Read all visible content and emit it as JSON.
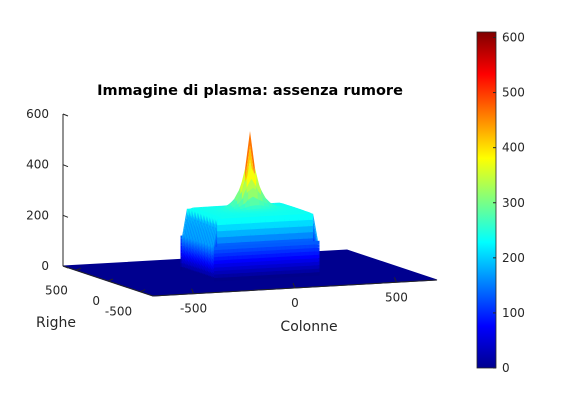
{
  "chart_data": {
    "type": "surface",
    "title": "Immagine di plasma: assenza rumore",
    "xlabel": "Colonne",
    "ylabel": "Righe",
    "zlabel": "",
    "xlim": [
      -700,
      700
    ],
    "ylim": [
      -700,
      700
    ],
    "zlim": [
      0,
      600
    ],
    "x_ticks": [
      -500,
      0,
      500
    ],
    "y_ticks": [
      -500,
      0,
      500
    ],
    "z_ticks": [
      0,
      200,
      400,
      600
    ],
    "surface": {
      "plateau_half_width": 250,
      "plateau_height": 250,
      "peak_height": 560,
      "peak_location": [
        0,
        0
      ]
    },
    "colorbar": {
      "colormap": "jet",
      "range": [
        0,
        610
      ],
      "ticks": [
        0,
        100,
        200,
        300,
        400,
        500,
        600
      ]
    },
    "grid": false
  }
}
